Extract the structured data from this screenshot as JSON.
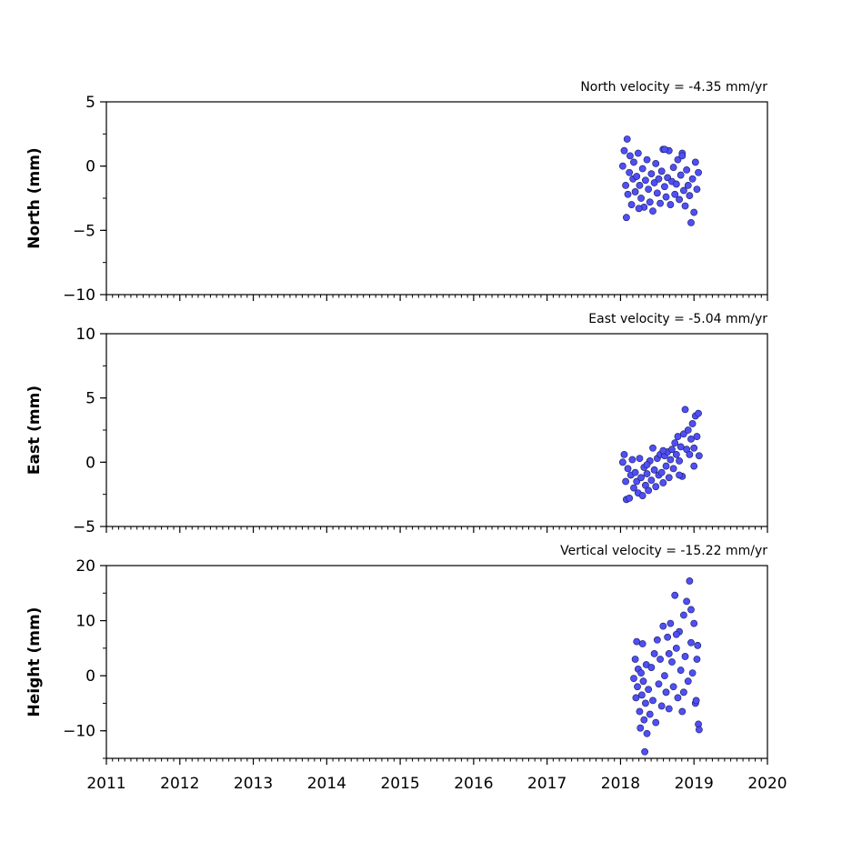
{
  "chart_data": [
    {
      "type": "scatter",
      "title": "North velocity = -4.35 mm/yr",
      "xlabel": "",
      "ylabel": "North (mm)",
      "xlim": [
        2011,
        2020
      ],
      "ylim": [
        -10,
        5
      ],
      "yticks": [
        5,
        0,
        -5,
        -10
      ],
      "yticklabels": [
        "5",
        "0",
        "−5",
        "−10"
      ],
      "xticks": [
        2011,
        2012,
        2013,
        2014,
        2015,
        2016,
        2017,
        2018,
        2019,
        2020
      ],
      "xticklabels": [],
      "marker_color": "#4f4ff5",
      "marker_edge": "#1a1a5a",
      "series": [
        {
          "x_start": 2018.0,
          "x_end": 2019.08,
          "points": [
            [
              2018.03,
              0.0
            ],
            [
              2018.05,
              1.2
            ],
            [
              2018.07,
              -1.5
            ],
            [
              2018.09,
              2.1
            ],
            [
              2018.1,
              -2.2
            ],
            [
              2018.12,
              -0.5
            ],
            [
              2018.13,
              0.8
            ],
            [
              2018.15,
              -3.0
            ],
            [
              2018.17,
              -1.0
            ],
            [
              2018.18,
              0.3
            ],
            [
              2018.2,
              -2.0
            ],
            [
              2018.22,
              -0.8
            ],
            [
              2018.24,
              1.0
            ],
            [
              2018.26,
              -1.5
            ],
            [
              2018.28,
              -2.5
            ],
            [
              2018.3,
              -0.2
            ],
            [
              2018.32,
              -3.2
            ],
            [
              2018.34,
              -1.1
            ],
            [
              2018.36,
              0.5
            ],
            [
              2018.38,
              -1.8
            ],
            [
              2018.4,
              -2.8
            ],
            [
              2018.42,
              -0.6
            ],
            [
              2018.44,
              -3.5
            ],
            [
              2018.46,
              -1.3
            ],
            [
              2018.48,
              0.2
            ],
            [
              2018.5,
              -2.1
            ],
            [
              2018.52,
              -1.0
            ],
            [
              2018.54,
              -2.9
            ],
            [
              2018.56,
              -0.4
            ],
            [
              2018.58,
              1.3
            ],
            [
              2018.6,
              -1.6
            ],
            [
              2018.62,
              -2.4
            ],
            [
              2018.64,
              -0.9
            ],
            [
              2018.66,
              1.2
            ],
            [
              2018.68,
              -3.0
            ],
            [
              2018.7,
              -1.2
            ],
            [
              2018.72,
              -0.1
            ],
            [
              2018.74,
              -2.2
            ],
            [
              2018.76,
              -1.4
            ],
            [
              2018.78,
              0.5
            ],
            [
              2018.8,
              -2.6
            ],
            [
              2018.82,
              -0.7
            ],
            [
              2018.84,
              1.0
            ],
            [
              2018.86,
              -1.9
            ],
            [
              2018.88,
              -3.1
            ],
            [
              2018.9,
              -0.3
            ],
            [
              2018.92,
              -1.5
            ],
            [
              2018.94,
              -2.3
            ],
            [
              2018.96,
              -4.4
            ],
            [
              2018.98,
              -1.0
            ],
            [
              2019.0,
              -3.6
            ],
            [
              2019.02,
              0.3
            ],
            [
              2019.04,
              -1.8
            ],
            [
              2019.06,
              -0.5
            ],
            [
              2018.08,
              -4.0
            ],
            [
              2018.25,
              -3.3
            ],
            [
              2018.6,
              1.3
            ],
            [
              2018.84,
              0.8
            ]
          ]
        }
      ]
    },
    {
      "type": "scatter",
      "title": "East velocity = -5.04 mm/yr",
      "xlabel": "",
      "ylabel": "East (mm)",
      "xlim": [
        2011,
        2020
      ],
      "ylim": [
        -5,
        10
      ],
      "yticks": [
        10,
        5,
        0,
        -5
      ],
      "yticklabels": [
        "10",
        "5",
        "0",
        "−5"
      ],
      "xticks": [
        2011,
        2012,
        2013,
        2014,
        2015,
        2016,
        2017,
        2018,
        2019,
        2020
      ],
      "xticklabels": [],
      "marker_color": "#4f4ff5",
      "marker_edge": "#1a1a5a",
      "series": [
        {
          "points": [
            [
              2018.03,
              0.0
            ],
            [
              2018.05,
              0.6
            ],
            [
              2018.07,
              -1.5
            ],
            [
              2018.08,
              -2.9
            ],
            [
              2018.1,
              -0.5
            ],
            [
              2018.12,
              -2.8
            ],
            [
              2018.14,
              -1.0
            ],
            [
              2018.16,
              0.2
            ],
            [
              2018.18,
              -2.0
            ],
            [
              2018.2,
              -0.8
            ],
            [
              2018.22,
              -1.5
            ],
            [
              2018.24,
              -2.4
            ],
            [
              2018.26,
              0.3
            ],
            [
              2018.28,
              -1.2
            ],
            [
              2018.3,
              -2.6
            ],
            [
              2018.32,
              -0.4
            ],
            [
              2018.34,
              -1.8
            ],
            [
              2018.36,
              -0.9
            ],
            [
              2018.38,
              -2.2
            ],
            [
              2018.4,
              0.1
            ],
            [
              2018.42,
              -1.4
            ],
            [
              2018.44,
              1.1
            ],
            [
              2018.46,
              -0.6
            ],
            [
              2018.48,
              -1.9
            ],
            [
              2018.5,
              0.3
            ],
            [
              2018.52,
              -1.0
            ],
            [
              2018.54,
              0.6
            ],
            [
              2018.56,
              -0.8
            ],
            [
              2018.58,
              -1.6
            ],
            [
              2018.6,
              0.5
            ],
            [
              2018.62,
              -0.3
            ],
            [
              2018.64,
              0.8
            ],
            [
              2018.66,
              -1.2
            ],
            [
              2018.68,
              0.2
            ],
            [
              2018.7,
              1.0
            ],
            [
              2018.72,
              -0.5
            ],
            [
              2018.74,
              1.5
            ],
            [
              2018.76,
              0.6
            ],
            [
              2018.78,
              2.0
            ],
            [
              2018.8,
              0.1
            ],
            [
              2018.82,
              1.2
            ],
            [
              2018.84,
              -1.1
            ],
            [
              2018.86,
              2.2
            ],
            [
              2018.88,
              4.1
            ],
            [
              2018.9,
              1.0
            ],
            [
              2018.92,
              2.5
            ],
            [
              2018.94,
              0.6
            ],
            [
              2018.96,
              1.8
            ],
            [
              2018.98,
              3.0
            ],
            [
              2019.0,
              1.1
            ],
            [
              2019.02,
              3.6
            ],
            [
              2019.04,
              2.0
            ],
            [
              2019.06,
              3.8
            ],
            [
              2019.07,
              0.5
            ],
            [
              2018.36,
              -0.2
            ],
            [
              2018.58,
              0.9
            ],
            [
              2018.8,
              -1.0
            ],
            [
              2019.0,
              -0.3
            ]
          ]
        }
      ]
    },
    {
      "type": "scatter",
      "title": "Vertical velocity = -15.22 mm/yr",
      "xlabel": "",
      "ylabel": "Height (mm)",
      "xlim": [
        2011,
        2020
      ],
      "ylim": [
        -15,
        20
      ],
      "yticks": [
        20,
        10,
        0,
        -10
      ],
      "yticklabels": [
        "20",
        "10",
        "0",
        "−10"
      ],
      "xticks": [
        2011,
        2012,
        2013,
        2014,
        2015,
        2016,
        2017,
        2018,
        2019,
        2020
      ],
      "xticklabels": [
        "2011",
        "2012",
        "2013",
        "2014",
        "2015",
        "2016",
        "2017",
        "2018",
        "2019",
        "2020"
      ],
      "marker_color": "#4f4ff5",
      "marker_edge": "#1a1a5a",
      "series": [
        {
          "points": [
            [
              2018.18,
              -0.5
            ],
            [
              2018.2,
              3.0
            ],
            [
              2018.21,
              -4.0
            ],
            [
              2018.22,
              6.2
            ],
            [
              2018.23,
              -2.0
            ],
            [
              2018.24,
              1.2
            ],
            [
              2018.26,
              -6.5
            ],
            [
              2018.27,
              -9.5
            ],
            [
              2018.28,
              0.5
            ],
            [
              2018.29,
              -3.5
            ],
            [
              2018.3,
              5.8
            ],
            [
              2018.31,
              -1.0
            ],
            [
              2018.32,
              -8.0
            ],
            [
              2018.33,
              -13.8
            ],
            [
              2018.34,
              -5.0
            ],
            [
              2018.35,
              2.0
            ],
            [
              2018.36,
              -10.5
            ],
            [
              2018.38,
              -2.5
            ],
            [
              2018.4,
              -7.0
            ],
            [
              2018.42,
              1.5
            ],
            [
              2018.44,
              -4.5
            ],
            [
              2018.46,
              4.0
            ],
            [
              2018.48,
              -8.5
            ],
            [
              2018.5,
              6.5
            ],
            [
              2018.52,
              -1.5
            ],
            [
              2018.54,
              3.0
            ],
            [
              2018.56,
              -5.5
            ],
            [
              2018.58,
              9.0
            ],
            [
              2018.6,
              0.0
            ],
            [
              2018.62,
              -3.0
            ],
            [
              2018.64,
              7.0
            ],
            [
              2018.66,
              -6.0
            ],
            [
              2018.68,
              9.5
            ],
            [
              2018.7,
              2.5
            ],
            [
              2018.72,
              -2.0
            ],
            [
              2018.74,
              14.6
            ],
            [
              2018.76,
              5.0
            ],
            [
              2018.78,
              -4.0
            ],
            [
              2018.8,
              8.0
            ],
            [
              2018.82,
              1.0
            ],
            [
              2018.84,
              -6.5
            ],
            [
              2018.86,
              11.0
            ],
            [
              2018.88,
              3.5
            ],
            [
              2018.9,
              13.5
            ],
            [
              2018.92,
              -1.0
            ],
            [
              2018.94,
              17.2
            ],
            [
              2018.96,
              6.0
            ],
            [
              2018.98,
              0.5
            ],
            [
              2019.0,
              9.5
            ],
            [
              2019.02,
              -5.0
            ],
            [
              2019.04,
              3.0
            ],
            [
              2019.06,
              -8.8
            ],
            [
              2019.07,
              -9.8
            ],
            [
              2019.05,
              5.5
            ],
            [
              2018.66,
              4.0
            ],
            [
              2018.76,
              7.5
            ],
            [
              2018.86,
              -3.0
            ],
            [
              2018.96,
              12.0
            ],
            [
              2019.03,
              -4.5
            ]
          ]
        }
      ]
    }
  ]
}
